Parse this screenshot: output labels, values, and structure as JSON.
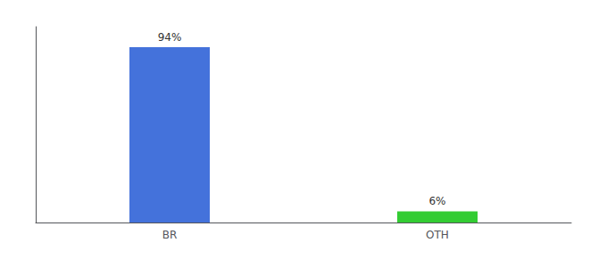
{
  "chart_data": {
    "type": "bar",
    "categories": [
      "BR",
      "OTH"
    ],
    "values": [
      94,
      6
    ],
    "colors": [
      "#4472db",
      "#33cc33"
    ],
    "ylim": [
      0,
      105
    ],
    "data_labels": true,
    "value_labels": [
      "94%",
      "6%"
    ],
    "tick_labels": "x",
    "grid": false
  }
}
